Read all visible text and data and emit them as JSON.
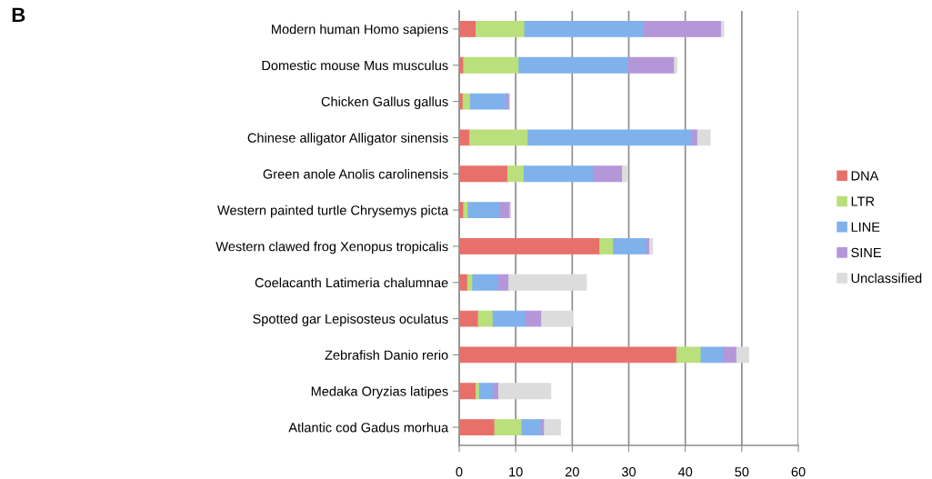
{
  "chart_data": {
    "type": "bar",
    "orientation": "horizontal",
    "stacked": true,
    "title": "B",
    "categories": [
      "Modern human Homo sapiens",
      "Domestic mouse Mus musculus",
      "Chicken Gallus gallus",
      "Chinese alligator Alligator sinensis",
      "Green anole Anolis carolinensis",
      "Western painted turtle Chrysemys picta",
      "Western clawed frog Xenopus tropicalis",
      "Coelacanth Latimeria chalumnae",
      "Spotted gar Lepisosteus oculatus",
      "Zebrafish Danio rerio",
      "Medaka Oryzias latipes",
      "Atlantic cod Gadus morhua"
    ],
    "series": [
      {
        "name": "DNA",
        "color": "#e8706a",
        "values": [
          3.0,
          0.8,
          0.7,
          1.9,
          8.6,
          0.8,
          24.9,
          1.5,
          3.4,
          38.5,
          3.0,
          6.3
        ]
      },
      {
        "name": "LTR",
        "color": "#b9e07a",
        "values": [
          8.6,
          9.8,
          1.3,
          10.3,
          2.9,
          0.8,
          2.4,
          0.9,
          2.6,
          4.3,
          0.6,
          4.8
        ]
      },
      {
        "name": "LINE",
        "color": "#7fb2ec",
        "values": [
          21.1,
          19.3,
          6.4,
          29.1,
          12.3,
          5.6,
          5.9,
          4.6,
          5.8,
          4.0,
          2.5,
          3.4
        ]
      },
      {
        "name": "SINE",
        "color": "#b497d9",
        "values": [
          13.7,
          8.2,
          0.5,
          0.9,
          5.1,
          1.8,
          0.5,
          1.8,
          2.8,
          2.3,
          0.9,
          0.6
        ]
      },
      {
        "name": "Unclassified",
        "color": "#dcdcdc",
        "values": [
          0.4,
          0.4,
          0,
          2.2,
          0.8,
          0,
          0.5,
          13.7,
          5.5,
          2.1,
          9.2,
          2.8
        ]
      }
    ],
    "xlim": [
      0,
      60
    ],
    "xticks": [
      0,
      10,
      20,
      30,
      40,
      50,
      60
    ],
    "grid": "x",
    "legend": "right"
  }
}
